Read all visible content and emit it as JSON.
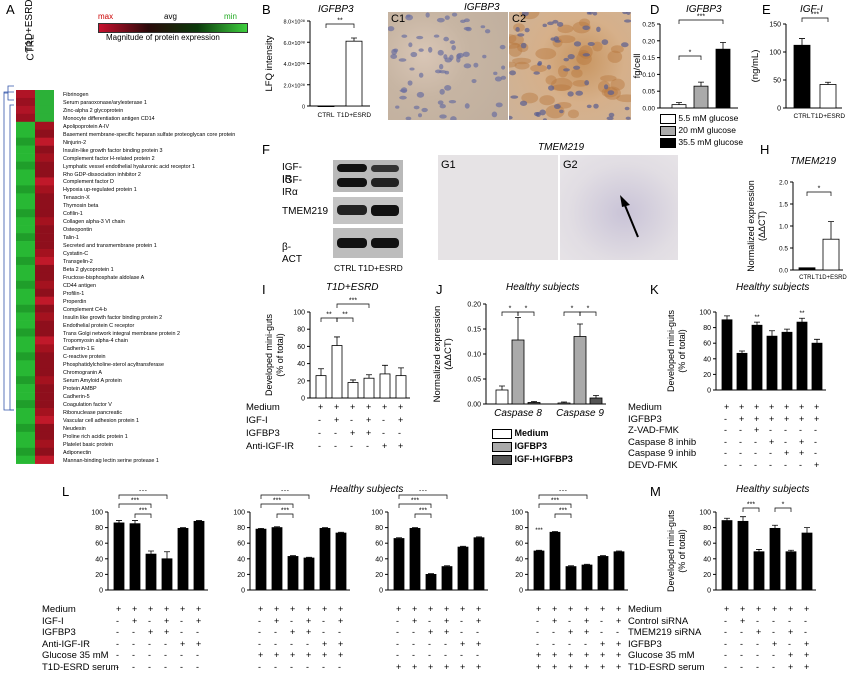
{
  "panelA": {
    "label": "A",
    "legend": {
      "max": "max",
      "avg": "avg",
      "min": "min",
      "caption": "Magnitude of protein expression"
    },
    "columns": [
      "CTRL",
      "T1D+ESRD"
    ],
    "proteins": [
      "Fibrinogen",
      "Serum paraoxonase/arylesterase 1",
      "Zinc-alpha 2 glycoprotein",
      "Monocyte differentiation antigen CD14",
      "Apolipoprotein A-IV",
      "Basement membrane-specific heparan sulfate proteoglycan core protein",
      "Ninjurin-2",
      "Insulin-like growth factor binding protein 3",
      "Complement factor H-related protein 2",
      "Lymphatic vessel endothelial hyaluronic acid receptor 1",
      "Rho GDP-dissociation inhibitor 2",
      "Complement factor D",
      "Hypoxia up-regulated protein 1",
      "Tenascin-X",
      "Thymosin beta",
      "Cofilin-1",
      "Collagen alpha-3 VI chain",
      "Osteopontin",
      "Talin-1",
      "Secreted and transmembrane protein 1",
      "Cystatin-C",
      "Transgelin-2",
      "Beta 2 glycoprotein 1",
      "Fructose-bisphosphate aldolase A",
      "CD44 antigen",
      "Profilin-1",
      "Properdin",
      "Complement C4-b",
      "Insulin like growth factor binding protein 2",
      "Endothelial protein C receptor",
      "Trans Golgi network integral membrane protein 2",
      "Tropomyosin alpha-4 chain",
      "Cadherin-1 E",
      "C-reactive protein",
      "Phosphatidylcholine-sterol acyltransferase",
      "Chromogranin A",
      "Serum Amyloid A protein",
      "Protein AMBP",
      "Cadherin-5",
      "Coagulation factor V",
      "Ribonuclease pancreatic",
      "Vascular cell adhesion protein 1",
      "Neudesin",
      "Proline rich acidic protein 1",
      "Platelet basic protein",
      "Adiponectin",
      "Mannan-binding lectin serine protease 1"
    ]
  },
  "panelB": {
    "label": "B",
    "title": "IGFBP3",
    "ylabel": "LFQ intensity",
    "yticks": [
      "0",
      "2.0×10⁰⁸",
      "4.0×10⁰⁸",
      "6.0×10⁰⁸",
      "8.0×10⁰⁸"
    ],
    "sig": "**"
  },
  "panelC": {
    "label1": "C1",
    "label2": "C2",
    "title": "IGFBP3"
  },
  "panelD": {
    "label": "D",
    "title": "IGFBP3",
    "ylabel": "fg/cell",
    "yticks": [
      "0.00",
      "0.05",
      "0.10",
      "0.15",
      "0.20",
      "0.25"
    ],
    "legend": [
      "5.5 mM glucose",
      "20 mM glucose",
      "35.5 mM glucose"
    ],
    "sig": [
      "*",
      "***"
    ]
  },
  "panelE": {
    "label": "E",
    "title": "IGF-I",
    "ylabel": "(ng/mL)",
    "yticks": [
      "0",
      "50",
      "100",
      "150"
    ],
    "sig": "***"
  },
  "panelF": {
    "label": "F",
    "bands": [
      "IGF-IR",
      "IGF-IRα",
      "TMEM219",
      "β-ACT"
    ],
    "xlabels": "CTRL  T1D+ESRD"
  },
  "panelG": {
    "label1": "G1",
    "label2": "G2",
    "title": "TMEM219"
  },
  "panelH": {
    "label": "H",
    "title": "TMEM219",
    "ylabel": "Normalized expression (ΔΔCT)",
    "yticks": [
      "0.0",
      "0.5",
      "1.0",
      "1.5",
      "2.0"
    ],
    "sig": "*"
  },
  "panelI": {
    "label": "I",
    "title": "T1D+ESRD",
    "ylabel": "Developed mini-guts (% of total)",
    "yticks": [
      "0",
      "20",
      "40",
      "60",
      "80",
      "100"
    ],
    "rows": [
      "Medium",
      "IGF-I",
      "IGFBP3",
      "Anti-IGF-IR"
    ],
    "signs": [
      [
        "+",
        "+",
        "+",
        "+",
        "+",
        "+"
      ],
      [
        "-",
        "+",
        "-",
        "+",
        "-",
        "+"
      ],
      [
        "-",
        "-",
        "+",
        "+",
        "-",
        "-"
      ],
      [
        "-",
        "-",
        "-",
        "-",
        "+",
        "+"
      ]
    ],
    "sig": [
      "**",
      "**",
      "***"
    ]
  },
  "panelJ": {
    "label": "J",
    "title": "Healthy subjects",
    "ylabel": "Normalized expression (ΔΔCT)",
    "yticks": [
      "0.00",
      "0.05",
      "0.10",
      "0.15",
      "0.20"
    ],
    "groups": [
      "Caspase 8",
      "Caspase 9"
    ],
    "legend": [
      "Medium",
      "IGFBP3",
      "IGF-I+IGFBP3"
    ],
    "sig": "*"
  },
  "panelK": {
    "label": "K",
    "title": "Healthy subjects",
    "ylabel": "Developed mini-guts (% of total)",
    "yticks": [
      "0",
      "20",
      "40",
      "60",
      "80",
      "100"
    ],
    "rows": [
      "Medium",
      "IGFBP3",
      "Z-VAD-FMK",
      "Caspase 8 inhib",
      "Caspase 9 inhib",
      "DEVD-FMK"
    ],
    "signs": [
      [
        "+",
        "+",
        "+",
        "+",
        "+",
        "+",
        "+"
      ],
      [
        "-",
        "+",
        "+",
        "+",
        "+",
        "+",
        "+"
      ],
      [
        "-",
        "-",
        "+",
        "-",
        "-",
        "-",
        "-"
      ],
      [
        "-",
        "-",
        "-",
        "+",
        "-",
        "+",
        "-"
      ],
      [
        "-",
        "-",
        "-",
        "-",
        "+",
        "+",
        "-"
      ],
      [
        "-",
        "-",
        "-",
        "-",
        "-",
        "-",
        "+"
      ]
    ],
    "sig": "**"
  },
  "panelL": {
    "label": "L",
    "title": "Healthy subjects",
    "ylabel": "Developed mini-guts (% of total)",
    "yticks": [
      "0",
      "20",
      "40",
      "60",
      "80",
      "100"
    ],
    "rows": [
      "Medium",
      "IGF-I",
      "IGFBP3",
      "Anti-IGF-IR",
      "Glucose 35 mM",
      "T1D-ESRD serum"
    ],
    "sig": "***"
  },
  "panelM": {
    "label": "M",
    "title": "Healthy subjects",
    "ylabel": "Developed mini-guts (% of total)",
    "yticks": [
      "0",
      "20",
      "40",
      "60",
      "80",
      "100"
    ],
    "rows": [
      "Medium",
      "Control siRNA",
      "TMEM219 siRNA",
      "IGFBP3",
      "Glucose 35 mM",
      "T1D-ESRD serum"
    ],
    "signs": [
      [
        "+",
        "+",
        "+",
        "+",
        "+",
        "+"
      ],
      [
        "-",
        "+",
        "-",
        "-",
        "-",
        "-"
      ],
      [
        "-",
        "-",
        "+",
        "-",
        "+",
        "-"
      ],
      [
        "-",
        "-",
        "-",
        "+",
        "-",
        "+"
      ],
      [
        "-",
        "-",
        "-",
        "-",
        "+",
        "+"
      ],
      [
        "-",
        "-",
        "-",
        "-",
        "+",
        "+"
      ]
    ],
    "sig": [
      "***",
      "*"
    ]
  },
  "chart_data": [
    {
      "panel": "B",
      "type": "bar",
      "categories": [
        "CTRL",
        "T1D+ESRD"
      ],
      "values": [
        0,
        610000000.0
      ],
      "errors": [
        0,
        30000000.0
      ],
      "ylim": [
        0,
        800000000.0
      ]
    },
    {
      "panel": "D",
      "type": "bar",
      "categories": [
        "5.5 mM glucose",
        "20 mM glucose",
        "35.5 mM glucose"
      ],
      "values": [
        0.01,
        0.065,
        0.175
      ],
      "errors": [
        0.006,
        0.012,
        0.02
      ],
      "ylim": [
        0,
        0.25
      ]
    },
    {
      "panel": "E",
      "type": "bar",
      "categories": [
        "CTRL",
        "T1D+ESRD"
      ],
      "values": [
        112,
        42
      ],
      "errors": [
        12,
        4
      ],
      "ylim": [
        0,
        150
      ]
    },
    {
      "panel": "H",
      "type": "bar",
      "categories": [
        "CTRL",
        "T1D+ESRD"
      ],
      "values": [
        0.05,
        0.7
      ],
      "errors": [
        0.0,
        0.4
      ],
      "ylim": [
        0,
        2.0
      ]
    },
    {
      "panel": "I",
      "type": "bar",
      "values": [
        26,
        61,
        18,
        23,
        28,
        26
      ],
      "errors": [
        8,
        10,
        3,
        4,
        10,
        9
      ],
      "ylim": [
        0,
        100
      ]
    },
    {
      "panel": "J",
      "type": "bar",
      "categories": [
        "Caspase 8",
        "Caspase 9"
      ],
      "series": [
        {
          "name": "Medium",
          "values": [
            0.028,
            0.002
          ],
          "errors": [
            0.008,
            0.002
          ]
        },
        {
          "name": "IGFBP3",
          "values": [
            0.128,
            0.135
          ],
          "errors": [
            0.045,
            0.025
          ]
        },
        {
          "name": "IGF-I+IGFBP3",
          "values": [
            0.003,
            0.012
          ],
          "errors": [
            0.002,
            0.005
          ]
        }
      ],
      "ylim": [
        0,
        0.2
      ]
    },
    {
      "panel": "K",
      "type": "bar",
      "values": [
        90,
        47,
        83,
        69,
        74,
        87,
        60
      ],
      "errors": [
        5,
        3,
        4,
        7,
        4,
        5,
        5
      ],
      "ylim": [
        0,
        100
      ]
    },
    {
      "panel": "L1",
      "type": "bar",
      "values": [
        86,
        85,
        46,
        40,
        79,
        88
      ],
      "errors": [
        3,
        4,
        4,
        9,
        1,
        1
      ],
      "ylim": [
        0,
        100
      ]
    },
    {
      "panel": "L2",
      "type": "bar",
      "values": [
        78,
        80,
        43,
        41,
        79,
        73
      ],
      "errors": [
        1,
        1,
        1,
        1,
        1,
        1
      ],
      "ylim": [
        0,
        100
      ]
    },
    {
      "panel": "L3",
      "type": "bar",
      "values": [
        66,
        79,
        20,
        30,
        55,
        67
      ],
      "errors": [
        1,
        1,
        1,
        1,
        1,
        1
      ],
      "ylim": [
        0,
        100
      ]
    },
    {
      "panel": "L4",
      "type": "bar",
      "values": [
        50,
        74,
        30,
        32,
        43,
        49
      ],
      "errors": [
        1,
        1,
        1,
        1,
        1,
        1
      ],
      "ylim": [
        0,
        100
      ]
    },
    {
      "panel": "M",
      "type": "bar",
      "values": [
        89,
        88,
        49,
        79,
        49,
        73
      ],
      "errors": [
        3,
        6,
        3,
        4,
        2,
        7
      ],
      "ylim": [
        0,
        100
      ]
    }
  ]
}
